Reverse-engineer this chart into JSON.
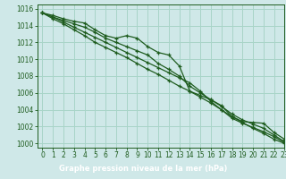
{
  "title": "Graphe pression niveau de la mer (hPa)",
  "bg_color": "#cfe8e8",
  "plot_bg_color": "#cfe8e8",
  "footer_color": "#2d6e2d",
  "footer_text_color": "#ffffff",
  "grid_color": "#a8d4c8",
  "line_color": "#1e5c1e",
  "xlim": [
    -0.5,
    23
  ],
  "ylim": [
    999.5,
    1016.5
  ],
  "yticks": [
    1000,
    1002,
    1004,
    1006,
    1008,
    1010,
    1012,
    1014,
    1016
  ],
  "xtick_labels": [
    "0",
    "1",
    "2",
    "3",
    "4",
    "5",
    "6",
    "7",
    "8",
    "9",
    "10",
    "11",
    "12",
    "13",
    "14",
    "15",
    "16",
    "17",
    "18",
    "19",
    "20",
    "21",
    "22",
    "23"
  ],
  "series": [
    [
      1015.5,
      1015.2,
      1014.8,
      1014.5,
      1014.3,
      1013.5,
      1012.8,
      1012.5,
      1012.8,
      1012.5,
      1011.5,
      1010.8,
      1010.5,
      1009.2,
      1006.2,
      1005.7,
      1005.2,
      1004.5,
      1003.2,
      1002.6,
      1002.5,
      1002.4,
      1001.3,
      1000.5
    ],
    [
      1015.5,
      1015.0,
      1014.6,
      1014.2,
      1013.8,
      1013.2,
      1012.5,
      1012.0,
      1011.5,
      1011.0,
      1010.5,
      1009.5,
      1008.8,
      1008.0,
      1006.8,
      1006.0,
      1005.2,
      1004.4,
      1003.5,
      1002.8,
      1002.3,
      1001.8,
      1001.0,
      1000.2
    ],
    [
      1015.5,
      1015.0,
      1014.4,
      1013.8,
      1013.2,
      1012.6,
      1012.0,
      1011.4,
      1010.8,
      1010.2,
      1009.6,
      1009.0,
      1008.4,
      1007.8,
      1007.2,
      1006.2,
      1005.0,
      1004.0,
      1003.0,
      1002.4,
      1001.9,
      1001.4,
      1000.8,
      1000.1
    ],
    [
      1015.5,
      1014.8,
      1014.2,
      1013.5,
      1012.8,
      1012.0,
      1011.4,
      1010.8,
      1010.2,
      1009.5,
      1008.8,
      1008.2,
      1007.5,
      1006.8,
      1006.2,
      1005.5,
      1004.8,
      1004.0,
      1003.2,
      1002.5,
      1001.8,
      1001.2,
      1000.5,
      1000.0
    ]
  ],
  "tick_fontsize": 5.5,
  "label_fontsize": 6.0,
  "linewidth": 0.9,
  "markersize": 3.5
}
